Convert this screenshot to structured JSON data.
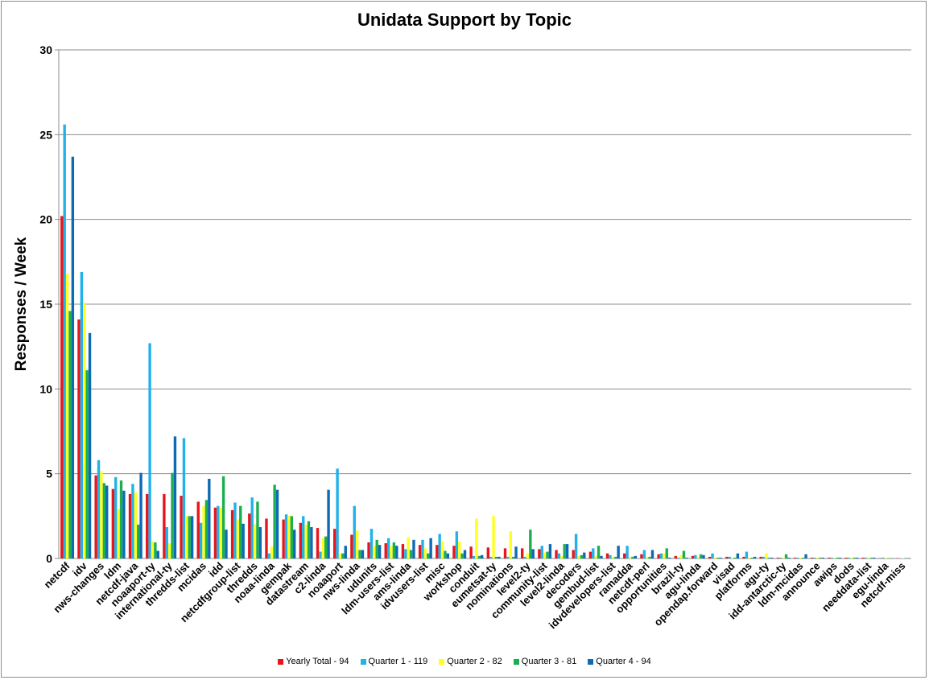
{
  "chart_data": {
    "type": "bar",
    "title": "Unidata Support by Topic",
    "ylabel": "Responses / Week",
    "xlabel": "",
    "ylim": [
      0,
      30
    ],
    "yticks": [
      "0",
      "5",
      "10",
      "15",
      "20",
      "25",
      "30"
    ],
    "grid": true,
    "legend_position": "bottom",
    "categories": [
      "netcdf",
      "idv",
      "nws-changes",
      "ldm",
      "netcdf-java",
      "noaaport-ty",
      "international-ty",
      "thredds-list",
      "mcidas",
      "idd",
      "netcdfgroup-list",
      "thredds",
      "noaa-linda",
      "gempak",
      "datastream",
      "c2-linda",
      "noaaport",
      "nws-linda",
      "udunits",
      "ldm-users-list",
      "ams-linda",
      "idvusers-list",
      "misc",
      "workshop",
      "conduit",
      "eumetsat-ty",
      "nominations",
      "level2-ty",
      "community-list",
      "level2-linda",
      "decoders",
      "gembud-list",
      "idvdevelopers-list",
      "ramadda",
      "netcdf-perl",
      "opportunities",
      "brazil-ty",
      "agu-linda",
      "opendap.forward",
      "visad",
      "platforms",
      "agu-ty",
      "idd-antarctic-ty",
      "ldm-mcidas",
      "announce",
      "awips",
      "dods",
      "needdata-list",
      "egu-linda",
      "netcdf-miss"
    ],
    "series": [
      {
        "name": "Yearly Total  - 94",
        "color": "#e8161c",
        "values": [
          20.2,
          14.1,
          4.9,
          4.1,
          3.8,
          3.8,
          3.8,
          3.7,
          3.35,
          3.0,
          2.85,
          2.65,
          2.35,
          2.3,
          2.1,
          1.8,
          1.75,
          1.4,
          0.95,
          0.9,
          0.85,
          0.8,
          0.8,
          0.75,
          0.7,
          0.65,
          0.6,
          0.6,
          0.55,
          0.5,
          0.5,
          0.4,
          0.3,
          0.3,
          0.25,
          0.25,
          0.15,
          0.15,
          0.1,
          0.1,
          0.1,
          0.1,
          0.05,
          0.05,
          0.05,
          0.05,
          0.05,
          0.05,
          0.02,
          0.02
        ]
      },
      {
        "name": "Quarter 1 - 119",
        "color": "#22b1e9",
        "values": [
          25.6,
          16.9,
          5.8,
          4.8,
          4.4,
          12.7,
          1.85,
          7.1,
          2.1,
          3.1,
          3.3,
          3.6,
          0.3,
          2.6,
          2.5,
          0.4,
          5.3,
          3.1,
          1.75,
          1.2,
          0.55,
          1.1,
          1.45,
          1.6,
          0.15,
          0.1,
          0.1,
          0.1,
          0.75,
          0.3,
          1.45,
          0.6,
          0.2,
          0.75,
          0.5,
          0.3,
          0.05,
          0.2,
          0.3,
          0.1,
          0.4,
          0.1,
          0.05,
          0.05,
          0.05,
          0.05,
          0.05,
          0.05,
          0.05,
          0.02
        ]
      },
      {
        "name": "Quarter 2 - 82",
        "color": "#ffff20",
        "values": [
          16.8,
          15.1,
          5.15,
          2.9,
          3.9,
          1.0,
          0.9,
          2.5,
          3.1,
          3.0,
          2.3,
          2.0,
          0.7,
          2.5,
          2.0,
          1.2,
          0.3,
          1.65,
          0.75,
          0.75,
          1.25,
          0.6,
          1.0,
          1.0,
          2.35,
          2.5,
          1.6,
          0.3,
          0.35,
          0.15,
          0.15,
          0.15,
          0.1,
          0.1,
          0.1,
          0.3,
          0.2,
          0.1,
          0.05,
          0.05,
          0.05,
          0.3,
          0.05,
          0.05,
          0.05,
          0.05,
          0.05,
          0.05,
          0.05,
          0.02
        ]
      },
      {
        "name": "Quarter 3 - 81",
        "color": "#1baf50",
        "values": [
          14.6,
          11.1,
          4.45,
          4.6,
          2.0,
          0.95,
          5.05,
          2.5,
          3.45,
          4.85,
          3.1,
          3.35,
          4.35,
          2.5,
          2.2,
          1.3,
          0.3,
          0.5,
          1.1,
          0.95,
          0.5,
          0.3,
          0.45,
          0.3,
          0.15,
          0.1,
          0.1,
          1.7,
          0.4,
          0.85,
          0.2,
          0.75,
          0.1,
          0.1,
          0.1,
          0.6,
          0.45,
          0.25,
          0.05,
          0.05,
          0.05,
          0.05,
          0.25,
          0.05,
          0.05,
          0.05,
          0.05,
          0.05,
          0.02,
          0.02
        ]
      },
      {
        "name": "Quarter 4 - 94",
        "color": "#0f6ab5",
        "values": [
          23.7,
          13.3,
          4.3,
          4.0,
          5.05,
          0.45,
          7.2,
          2.5,
          4.7,
          1.7,
          2.05,
          1.85,
          4.05,
          1.7,
          1.85,
          4.05,
          0.75,
          0.5,
          0.8,
          0.75,
          1.1,
          1.2,
          0.3,
          0.5,
          0.2,
          0.1,
          0.7,
          0.55,
          0.85,
          0.85,
          0.35,
          0.15,
          0.75,
          0.15,
          0.5,
          0.05,
          0.05,
          0.2,
          0.05,
          0.3,
          0.1,
          0.05,
          0.05,
          0.25,
          0.05,
          0.05,
          0.05,
          0.05,
          0.02,
          0.02
        ]
      }
    ]
  }
}
